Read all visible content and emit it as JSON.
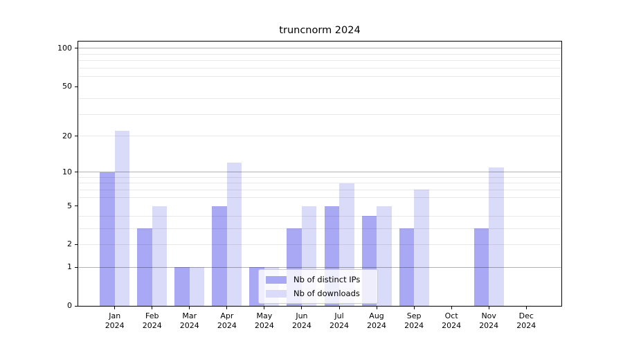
{
  "title": "truncnorm 2024",
  "chart_data": {
    "type": "bar",
    "title": "truncnorm 2024",
    "x_categories": [
      {
        "month": "Jan",
        "year": "2024"
      },
      {
        "month": "Feb",
        "year": "2024"
      },
      {
        "month": "Mar",
        "year": "2024"
      },
      {
        "month": "Apr",
        "year": "2024"
      },
      {
        "month": "May",
        "year": "2024"
      },
      {
        "month": "Jun",
        "year": "2024"
      },
      {
        "month": "Jul",
        "year": "2024"
      },
      {
        "month": "Aug",
        "year": "2024"
      },
      {
        "month": "Sep",
        "year": "2024"
      },
      {
        "month": "Oct",
        "year": "2024"
      },
      {
        "month": "Nov",
        "year": "2024"
      },
      {
        "month": "Dec",
        "year": "2024"
      }
    ],
    "series": [
      {
        "name": "Nb of distinct IPs",
        "color": "#a8a8f4",
        "values": [
          10,
          3,
          1,
          5,
          1,
          3,
          5,
          4,
          3,
          0,
          3,
          0
        ]
      },
      {
        "name": "Nb of downloads",
        "color": "#dadaf9",
        "values": [
          22,
          5,
          1,
          12,
          1,
          5,
          8,
          5,
          7,
          0,
          11,
          0
        ]
      }
    ],
    "y_axis": {
      "scale": "log1p",
      "tick_values": [
        0,
        1,
        2,
        5,
        10,
        20,
        50,
        100
      ],
      "tick_labels": [
        "0",
        "1",
        "2",
        "5",
        "10",
        "20",
        "50",
        "100"
      ],
      "major_gridlines": [
        1,
        10,
        100
      ],
      "minor_gridlines": [
        2,
        3,
        4,
        6,
        7,
        8,
        9,
        20,
        30,
        40,
        60,
        70,
        80,
        90
      ],
      "ylim": [
        0,
        114
      ]
    },
    "legend": {
      "position": "lower-center",
      "entries": [
        "Nb of distinct IPs",
        "Nb of downloads"
      ]
    },
    "colors": {
      "background": "#ffffff",
      "axis": "#000000",
      "major_grid": "#b3b3b3",
      "minor_grid": "#e9e9e9"
    }
  }
}
